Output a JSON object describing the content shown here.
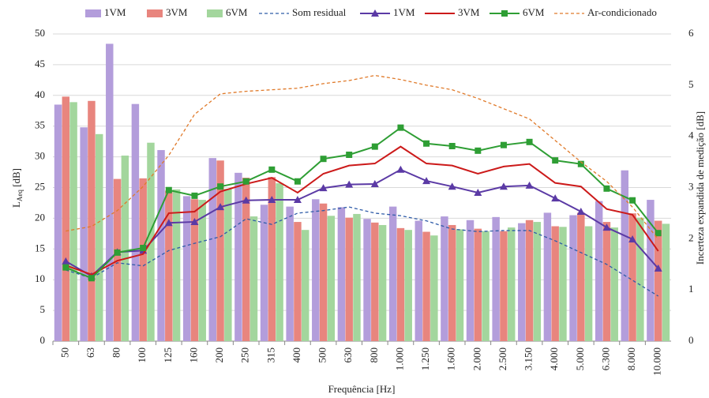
{
  "chart_data": {
    "type": "bar",
    "xlabel": "Frequência [Hz]",
    "ylabel": {
      "text": "L",
      "subscript": "Aeq",
      "suffix": " [dB]"
    },
    "y2label": "Incerteza expandida de medição [dB]",
    "categories": [
      "50",
      "63",
      "80",
      "100",
      "125",
      "160",
      "200",
      "250",
      "315",
      "400",
      "500",
      "630",
      "800",
      "1.000",
      "1.250",
      "1.600",
      "2.000",
      "2.500",
      "3.150",
      "4.000",
      "5.000",
      "6.300",
      "8.000",
      "10.000"
    ],
    "ylim": [
      0,
      50
    ],
    "yticks": [
      0,
      5,
      10,
      15,
      20,
      25,
      30,
      35,
      40,
      45,
      50
    ],
    "y2lim": [
      0,
      6
    ],
    "y2ticks": [
      0,
      1,
      2,
      3,
      4,
      5,
      6
    ],
    "grid": true,
    "legend": "top",
    "series": [
      {
        "name": "1VM",
        "type": "bar",
        "color": "#b39ddb",
        "values": [
          38.5,
          34.8,
          48.4,
          38.6,
          31.1,
          23.6,
          29.8,
          27.4,
          22.2,
          21.9,
          23.1,
          21.8,
          19.9,
          21.9,
          19.6,
          20.3,
          19.7,
          20.2,
          19.2,
          20.9,
          20.5,
          22.8,
          27.8,
          23.0
        ]
      },
      {
        "name": "3VM",
        "type": "bar",
        "color": "#e8857e",
        "values": [
          39.8,
          39.1,
          26.4,
          26.5,
          24.5,
          23.1,
          29.4,
          26.6,
          26.7,
          19.4,
          22.4,
          20.1,
          19.3,
          18.4,
          17.8,
          18.9,
          18.3,
          17.9,
          19.7,
          18.7,
          20.9,
          19.4,
          20.8,
          19.6
        ]
      },
      {
        "name": "6VM",
        "type": "bar",
        "color": "#a3d69d",
        "values": [
          38.9,
          33.7,
          30.2,
          32.3,
          24.7,
          23.0,
          24.8,
          20.3,
          25.7,
          18.1,
          20.4,
          20.7,
          18.9,
          18.1,
          17.2,
          18.2,
          17.9,
          18.5,
          19.4,
          18.6,
          18.7,
          18.5,
          20.1,
          19.1
        ]
      },
      {
        "name": "Som residual",
        "type": "line",
        "axis": "y2",
        "color": "#2f5ca8",
        "dash": true,
        "values": [
          1.39,
          1.23,
          1.53,
          1.47,
          1.77,
          1.91,
          2.04,
          2.39,
          2.28,
          2.5,
          2.55,
          2.62,
          2.5,
          2.45,
          2.35,
          2.19,
          2.14,
          2.16,
          2.16,
          1.96,
          1.73,
          1.5,
          1.19,
          0.88
        ]
      },
      {
        "name": "1VM",
        "type": "line",
        "axis": "y2",
        "color": "#5b3aa5",
        "marker": "triangle",
        "values": [
          1.56,
          1.27,
          1.74,
          1.77,
          2.31,
          2.33,
          2.62,
          2.75,
          2.76,
          2.76,
          2.99,
          3.06,
          3.07,
          3.35,
          3.13,
          3.02,
          2.9,
          3.02,
          3.04,
          2.79,
          2.53,
          2.22,
          1.99,
          1.42
        ]
      },
      {
        "name": "3VM",
        "type": "line",
        "axis": "y2",
        "color": "#cc1a1a",
        "values": [
          1.48,
          1.3,
          1.57,
          1.7,
          2.5,
          2.53,
          2.92,
          3.07,
          3.19,
          2.9,
          3.27,
          3.43,
          3.47,
          3.8,
          3.47,
          3.43,
          3.27,
          3.41,
          3.46,
          3.09,
          3.02,
          2.58,
          2.47,
          1.76
        ]
      },
      {
        "name": "6VM",
        "type": "line",
        "axis": "y2",
        "color": "#2e9e34",
        "marker": "square",
        "values": [
          1.44,
          1.23,
          1.73,
          1.82,
          2.95,
          2.84,
          3.02,
          3.12,
          3.35,
          3.12,
          3.56,
          3.64,
          3.8,
          4.17,
          3.86,
          3.81,
          3.72,
          3.83,
          3.89,
          3.53,
          3.46,
          2.98,
          2.75,
          2.11
        ]
      },
      {
        "name": "Ar-condicionado",
        "type": "line",
        "axis": "y2",
        "color": "#e07a2a",
        "dash": true,
        "values": [
          2.15,
          2.24,
          2.55,
          3.02,
          3.63,
          4.43,
          4.83,
          4.88,
          4.91,
          4.94,
          5.03,
          5.09,
          5.19,
          5.11,
          5.0,
          4.91,
          4.74,
          4.54,
          4.34,
          3.92,
          3.5,
          3.12,
          2.62,
          1.99
        ]
      }
    ]
  }
}
